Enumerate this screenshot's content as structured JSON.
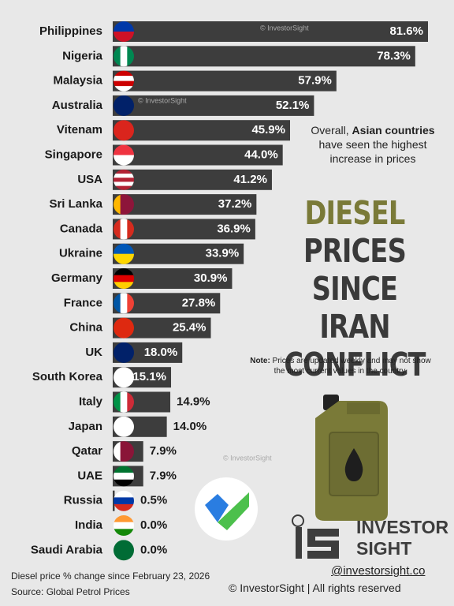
{
  "chart_data": {
    "type": "bar",
    "orientation": "horizontal",
    "title_lines": [
      "DIESEL",
      "PRICES",
      "SINCE IRAN",
      "CONFLICT"
    ],
    "categories": [
      "Philippines",
      "Nigeria",
      "Malaysia",
      "Australia",
      "Vitenam",
      "Singapore",
      "USA",
      "Sri Lanka",
      "Canada",
      "Ukraine",
      "Germany",
      "France",
      "China",
      "UK",
      "South Korea",
      "Italy",
      "Japan",
      "Qatar",
      "UAE",
      "Russia",
      "India",
      "Saudi Arabia"
    ],
    "values": [
      81.6,
      78.3,
      57.9,
      52.1,
      45.9,
      44.0,
      41.2,
      37.2,
      36.9,
      33.9,
      30.9,
      27.8,
      25.4,
      18.0,
      15.1,
      14.9,
      14.0,
      7.9,
      7.9,
      0.5,
      0.0,
      0.0
    ],
    "value_labels": [
      "81.6%",
      "78.3%",
      "57.9%",
      "52.1%",
      "45.9%",
      "44.0%",
      "41.2%",
      "37.2%",
      "36.9%",
      "33.9%",
      "30.9%",
      "27.8%",
      "25.4%",
      "18.0%",
      "15.1%",
      "14.9%",
      "14.0%",
      "7.9%",
      "7.9%",
      "0.5%",
      "0.0%",
      "0.0%"
    ],
    "color": "#3d3d3d",
    "annotation": {
      "before": "Overall, ",
      "bold": "Asian countries",
      "after": " have seen the highest increase in prices"
    },
    "note": {
      "label": "Note:",
      "text": " Prices are updated weekly and may not show the most current values in the country."
    },
    "subtitle": "Diesel price % change since February 23, 2026",
    "source": "Source: Global Petrol Prices"
  },
  "brand": {
    "logo_top": "INVESTOR",
    "logo_bottom": "SIGHT",
    "handle": "@investorsight.co",
    "copyright": "© InvestorSight |  All rights reserved",
    "watermarks": [
      "© InvestorSight",
      "© InvestorSight",
      "© InvestorSight"
    ]
  }
}
